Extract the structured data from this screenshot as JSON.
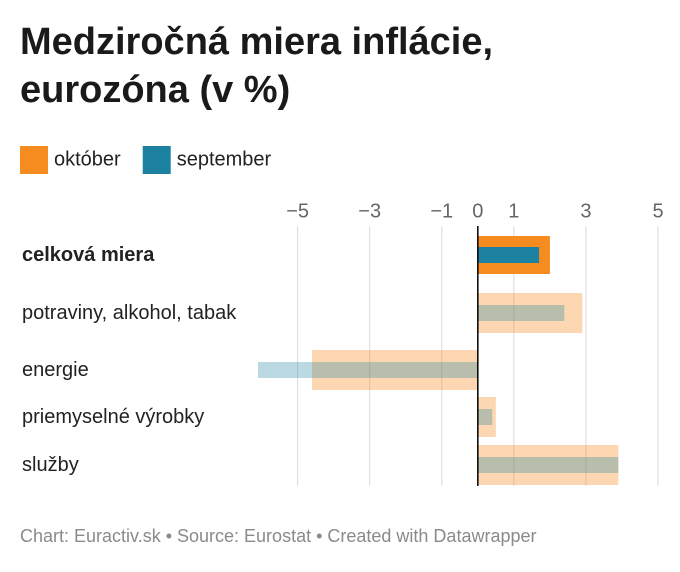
{
  "chart_data": {
    "type": "bar",
    "orientation": "horizontal",
    "title": "Medziročná miera inflácie, eurozóna (v %)",
    "categories": [
      "celková miera",
      "potraviny, alkohol, tabak",
      "energie",
      "priemyselné výrobky",
      "služby"
    ],
    "series": [
      {
        "name": "október",
        "color": "#f68b1f",
        "values": [
          2.0,
          2.9,
          -4.6,
          0.5,
          3.9
        ]
      },
      {
        "name": "september",
        "color": "#1d81a2",
        "values": [
          1.7,
          2.4,
          -6.1,
          0.4,
          3.9
        ]
      }
    ],
    "xlim": [
      -6.1,
      5
    ],
    "xticks": [
      {
        "value": -5,
        "label": "−5"
      },
      {
        "value": -3,
        "label": "−3"
      },
      {
        "value": -1,
        "label": "−1"
      },
      0,
      1,
      3,
      5
    ],
    "grid": true,
    "footer": "Chart: Euractiv.sk • Source: Eurostat • Created with Datawrapper"
  }
}
